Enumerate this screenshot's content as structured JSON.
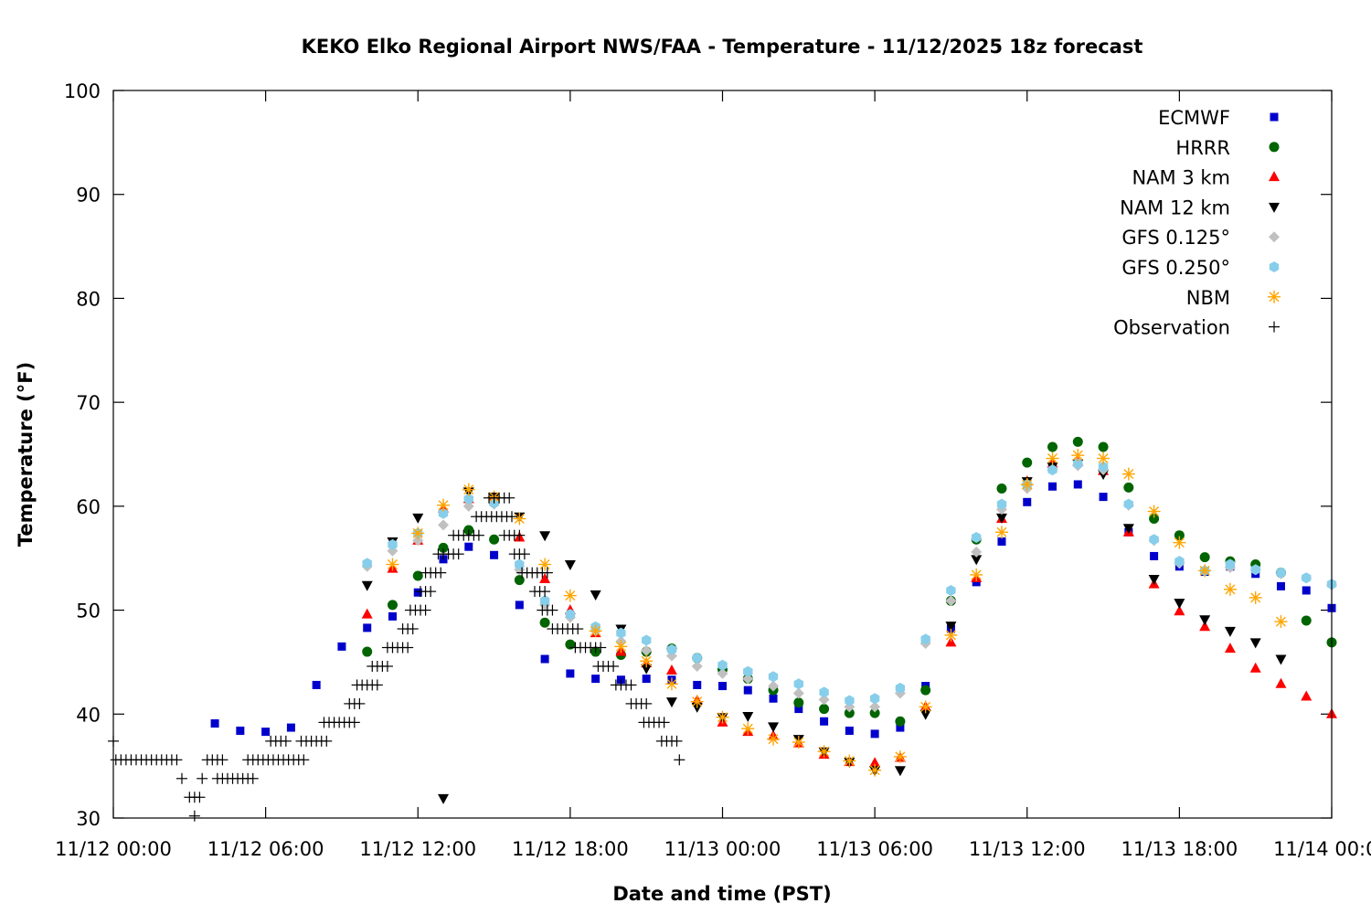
{
  "chart_data": {
    "type": "scatter",
    "title": "KEKO Elko Regional Airport NWS/FAA - Temperature - 11/12/2025 18z forecast",
    "xlabel": "Date and time (PST)",
    "ylabel": "Temperature (°F)",
    "x_unit": "hours since 11/12 00:00",
    "xlim": [
      0,
      48
    ],
    "ylim": [
      30,
      100
    ],
    "yticks": [
      30,
      40,
      50,
      60,
      70,
      80,
      90,
      100
    ],
    "xticks": [
      {
        "hour": 0,
        "label": "11/12 00:00"
      },
      {
        "hour": 6,
        "label": "11/12 06:00"
      },
      {
        "hour": 12,
        "label": "11/12 12:00"
      },
      {
        "hour": 18,
        "label": "11/12 18:00"
      },
      {
        "hour": 24,
        "label": "11/13 00:00"
      },
      {
        "hour": 30,
        "label": "11/13 06:00"
      },
      {
        "hour": 36,
        "label": "11/13 12:00"
      },
      {
        "hour": 42,
        "label": "11/13 18:00"
      },
      {
        "hour": 48,
        "label": "11/14 00:00"
      }
    ],
    "grid": false,
    "legend_position": "top-right",
    "series": [
      {
        "name": "ECMWF",
        "marker": "square",
        "color": "#0000cc",
        "start_hour": 4,
        "values": [
          39.1,
          38.4,
          38.3,
          38.7,
          42.8,
          46.5,
          48.3,
          49.4,
          51.7,
          54.9,
          56.1,
          55.3,
          50.5,
          45.3,
          43.9,
          43.4,
          43.3,
          43.4,
          43.3,
          42.8,
          42.7,
          42.3,
          41.5,
          40.5,
          39.3,
          38.4,
          38.1,
          38.7,
          42.7,
          48.2,
          52.7,
          56.6,
          60.4,
          61.9,
          62.1,
          60.9,
          57.5,
          55.2,
          54.2,
          53.7,
          54.2,
          53.5,
          52.3,
          51.9,
          50.2
        ]
      },
      {
        "name": "HRRR",
        "marker": "circle",
        "color": "#006400",
        "start_hour": 10,
        "values": [
          46.0,
          50.5,
          53.3,
          56.0,
          57.7,
          56.8,
          52.9,
          48.8,
          46.7,
          46.0,
          45.7,
          46.0,
          46.3,
          45.4,
          44.3,
          43.4,
          42.3,
          41.1,
          40.5,
          40.1,
          40.1,
          39.3,
          42.3,
          50.9,
          56.8,
          61.7,
          64.2,
          65.7,
          66.2,
          65.7,
          61.8,
          58.8,
          57.2,
          55.1,
          54.7,
          54.4,
          53.6,
          49.0,
          46.9
        ]
      },
      {
        "name": "NAM 3 km",
        "marker": "triangle-up",
        "color": "#ff0000",
        "start_hour": 10,
        "values": [
          49.6,
          54.0,
          56.7,
          59.8,
          60.7,
          60.9,
          57.0,
          53.0,
          50.0,
          47.8,
          46.0,
          44.9,
          44.2,
          41.3,
          39.2,
          38.3,
          37.9,
          37.2,
          36.1,
          35.4,
          35.3,
          35.8,
          40.7,
          46.9,
          53.1,
          58.8,
          62.4,
          64.1,
          64.3,
          63.4,
          57.5,
          52.5,
          49.9,
          48.4,
          46.3,
          44.4,
          42.9,
          41.7,
          40.0
        ]
      },
      {
        "name": "NAM 12 km",
        "marker": "triangle-down",
        "color": "#000000",
        "start_hour": 10,
        "values": [
          52.4,
          56.6,
          58.9,
          31.9,
          61.4,
          60.9,
          59.0,
          57.2,
          54.4,
          51.5,
          48.2,
          44.4,
          41.2,
          40.7,
          39.7,
          39.8,
          38.8,
          37.6,
          36.4,
          35.4,
          34.6,
          34.6,
          40.0,
          48.5,
          54.9,
          58.9,
          62.4,
          63.8,
          64.1,
          63.1,
          57.9,
          53.0,
          50.7,
          49.1,
          48.0,
          46.9,
          45.3
        ]
      },
      {
        "name": "GFS 0.125°",
        "marker": "diamond",
        "color": "#c0c0c0",
        "start_hour": 10,
        "values": [
          54.2,
          55.7,
          56.7,
          58.2,
          60.0,
          60.2,
          53.9,
          50.5,
          49.3,
          48.0,
          47.0,
          46.1,
          45.6,
          44.6,
          43.9,
          43.4,
          42.7,
          42.0,
          41.4,
          40.7,
          40.7,
          42.0,
          46.8,
          50.9,
          55.6,
          59.7,
          61.7,
          63.5,
          63.9,
          63.5,
          60.1,
          56.7,
          54.5,
          53.8,
          54.1,
          53.9,
          53.5,
          53.1,
          52.4
        ]
      },
      {
        "name": "GFS 0.250°",
        "marker": "pentagon",
        "color": "#87ceeb",
        "start_hour": 10,
        "values": [
          54.5,
          56.3,
          57.4,
          59.3,
          60.7,
          60.3,
          54.4,
          50.9,
          49.6,
          48.4,
          47.8,
          47.1,
          46.2,
          45.4,
          44.7,
          44.1,
          43.6,
          42.9,
          42.1,
          41.3,
          41.5,
          42.5,
          47.2,
          51.9,
          57.0,
          60.2,
          62.1,
          63.5,
          64.1,
          63.8,
          60.2,
          56.8,
          54.7,
          53.8,
          54.4,
          53.9,
          53.6,
          53.1,
          52.5
        ]
      },
      {
        "name": "NBM",
        "marker": "asterisk",
        "color": "#ffa500",
        "start_hour": 11,
        "values": [
          54.4,
          57.4,
          60.1,
          61.6,
          60.9,
          58.8,
          54.4,
          51.4,
          48.0,
          46.5,
          45.1,
          42.9,
          41.2,
          39.7,
          38.6,
          37.6,
          37.3,
          36.4,
          35.5,
          34.6,
          35.9,
          40.7,
          47.6,
          53.4,
          57.5,
          62.1,
          64.6,
          64.9,
          64.6,
          63.1,
          59.5,
          56.5,
          53.8,
          52.0,
          51.2,
          48.9
        ]
      },
      {
        "name": "Observation",
        "marker": "plus",
        "color": "#000000",
        "runs_hour_start_end_temp": [
          [
            0,
            0,
            37.4
          ],
          [
            0.1,
            2.6,
            35.6
          ],
          [
            2.7,
            2.7,
            33.8
          ],
          [
            3.5,
            3.5,
            33.8
          ],
          [
            3.0,
            3.4,
            32.0
          ],
          [
            3.2,
            3.2,
            30.2
          ],
          [
            3.7,
            4.3,
            35.6
          ],
          [
            4.1,
            5.5,
            33.8
          ],
          [
            5.3,
            7.6,
            35.6
          ],
          [
            6.2,
            6.8,
            37.4
          ],
          [
            7.4,
            8.5,
            37.4
          ],
          [
            8.3,
            9.5,
            39.2
          ],
          [
            9.3,
            9.8,
            41.0
          ],
          [
            9.6,
            10.5,
            42.8
          ],
          [
            10.2,
            10.8,
            44.6
          ],
          [
            10.8,
            11.6,
            46.4
          ],
          [
            11.4,
            11.9,
            48.2
          ],
          [
            11.7,
            12.4,
            50.0
          ],
          [
            12.1,
            12.6,
            51.8
          ],
          [
            12.3,
            12.9,
            53.6
          ],
          [
            12.8,
            13.7,
            55.4
          ],
          [
            13.4,
            14.5,
            57.2
          ],
          [
            14.3,
            15.7,
            59.0
          ],
          [
            14.8,
            15.6,
            60.8
          ],
          [
            15.4,
            16.0,
            57.2
          ],
          [
            15.8,
            16.3,
            55.4
          ],
          [
            16.1,
            17.1,
            53.6
          ],
          [
            16.6,
            17.1,
            51.8
          ],
          [
            16.9,
            17.3,
            50.0
          ],
          [
            17.3,
            18.4,
            48.2
          ],
          [
            18.2,
            19.3,
            46.4
          ],
          [
            19.1,
            19.8,
            44.6
          ],
          [
            19.8,
            20.4,
            42.8
          ],
          [
            20.4,
            21.1,
            41.0
          ],
          [
            20.9,
            21.8,
            39.2
          ],
          [
            21.6,
            22.3,
            37.4
          ],
          [
            22.3,
            22.3,
            35.6
          ]
        ]
      }
    ]
  }
}
